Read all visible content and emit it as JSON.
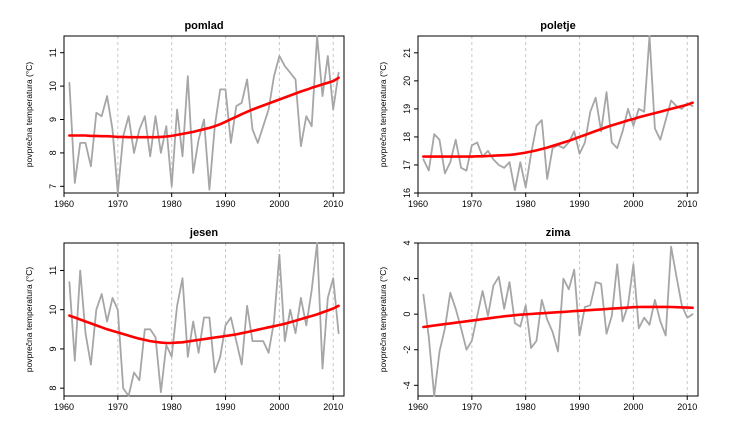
{
  "chart_data": [
    {
      "type": "line",
      "title": "pomlad",
      "xlabel": "",
      "ylabel": "povprečna temperatura (°C)",
      "xlim": [
        1960,
        2012
      ],
      "ylim": [
        6.8,
        11.5
      ],
      "xticks": [
        1960,
        1970,
        1980,
        1990,
        2000,
        2010
      ],
      "yticks": [
        7,
        8,
        9,
        10,
        11
      ],
      "vgrid_dashed": [
        1970,
        1980,
        1990,
        2000,
        2010
      ],
      "x": [
        1961,
        1962,
        1963,
        1964,
        1965,
        1966,
        1967,
        1968,
        1969,
        1970,
        1971,
        1972,
        1973,
        1974,
        1975,
        1976,
        1977,
        1978,
        1979,
        1980,
        1981,
        1982,
        1983,
        1984,
        1985,
        1986,
        1987,
        1988,
        1989,
        1990,
        1991,
        1992,
        1993,
        1994,
        1995,
        1996,
        1997,
        1998,
        1999,
        2000,
        2001,
        2002,
        2003,
        2004,
        2005,
        2006,
        2007,
        2008,
        2009,
        2010,
        2011
      ],
      "series": [
        {
          "color": "#a6a6a6",
          "values": [
            10.1,
            7.1,
            8.3,
            8.3,
            7.6,
            9.2,
            9.1,
            9.7,
            8.7,
            6.8,
            8.5,
            9.1,
            8.0,
            8.7,
            9.1,
            7.9,
            9.1,
            8.0,
            8.8,
            7.0,
            9.3,
            7.9,
            10.3,
            7.4,
            8.4,
            9.0,
            6.9,
            8.8,
            9.9,
            9.9,
            8.3,
            9.4,
            9.5,
            10.2,
            8.7,
            8.3,
            8.8,
            9.3,
            10.3,
            10.9,
            10.6,
            10.4,
            10.2,
            8.2,
            9.1,
            8.8,
            11.5,
            9.7,
            10.9,
            9.3,
            10.4
          ]
        },
        {
          "color": "#ff0000",
          "values": [
            8.52,
            8.52,
            8.52,
            8.52,
            8.51,
            8.51,
            8.5,
            8.5,
            8.49,
            8.48,
            8.48,
            8.47,
            8.47,
            8.47,
            8.47,
            8.47,
            8.47,
            8.48,
            8.49,
            8.51,
            8.54,
            8.57,
            8.6,
            8.63,
            8.67,
            8.71,
            8.75,
            8.8,
            8.86,
            8.93,
            9.01,
            9.08,
            9.16,
            9.23,
            9.3,
            9.36,
            9.42,
            9.48,
            9.54,
            9.6,
            9.66,
            9.72,
            9.78,
            9.84,
            9.89,
            9.95,
            10.0,
            10.05,
            10.1,
            10.15,
            10.25
          ]
        }
      ]
    },
    {
      "type": "line",
      "title": "poletje",
      "xlabel": "",
      "ylabel": "povprečna temperatura (°C)",
      "xlim": [
        1960,
        2012
      ],
      "ylim": [
        16.0,
        21.6
      ],
      "xticks": [
        1960,
        1970,
        1980,
        1990,
        2000,
        2010
      ],
      "yticks": [
        16,
        17,
        18,
        19,
        20,
        21
      ],
      "vgrid_dashed": [
        1970,
        1980,
        1990,
        2000,
        2010
      ],
      "x": [
        1961,
        1962,
        1963,
        1964,
        1965,
        1966,
        1967,
        1968,
        1969,
        1970,
        1971,
        1972,
        1973,
        1974,
        1975,
        1976,
        1977,
        1978,
        1979,
        1980,
        1981,
        1982,
        1983,
        1984,
        1985,
        1986,
        1987,
        1988,
        1989,
        1990,
        1991,
        1992,
        1993,
        1994,
        1995,
        1996,
        1997,
        1998,
        1999,
        2000,
        2001,
        2002,
        2003,
        2004,
        2005,
        2006,
        2007,
        2008,
        2009,
        2010,
        2011
      ],
      "series": [
        {
          "color": "#a6a6a6",
          "values": [
            17.2,
            16.8,
            18.1,
            17.9,
            16.7,
            17.1,
            17.9,
            16.9,
            16.8,
            17.7,
            17.8,
            17.3,
            17.5,
            17.2,
            17.0,
            16.9,
            17.1,
            16.1,
            17.1,
            16.2,
            17.4,
            18.4,
            18.6,
            16.5,
            17.6,
            17.7,
            17.6,
            17.8,
            18.2,
            17.4,
            17.8,
            18.9,
            19.4,
            18.2,
            19.6,
            17.8,
            17.6,
            18.2,
            19.0,
            18.4,
            19.0,
            18.9,
            21.6,
            18.3,
            17.9,
            18.6,
            19.3,
            19.1,
            19.0,
            19.2,
            19.1
          ]
        },
        {
          "color": "#ff0000",
          "values": [
            17.3,
            17.3,
            17.3,
            17.3,
            17.3,
            17.3,
            17.3,
            17.3,
            17.3,
            17.3,
            17.31,
            17.31,
            17.32,
            17.33,
            17.34,
            17.35,
            17.36,
            17.38,
            17.41,
            17.44,
            17.48,
            17.52,
            17.57,
            17.62,
            17.68,
            17.74,
            17.8,
            17.86,
            17.93,
            18.0,
            18.07,
            18.14,
            18.21,
            18.28,
            18.35,
            18.41,
            18.47,
            18.53,
            18.59,
            18.64,
            18.7,
            18.75,
            18.8,
            18.85,
            18.9,
            18.95,
            19.0,
            19.05,
            19.1,
            19.15,
            19.22
          ]
        }
      ]
    },
    {
      "type": "line",
      "title": "jesen",
      "xlabel": "",
      "ylabel": "povprečna temperatura (°C)",
      "xlim": [
        1960,
        2012
      ],
      "ylim": [
        7.8,
        11.7
      ],
      "xticks": [
        1960,
        1970,
        1980,
        1990,
        2000,
        2010
      ],
      "yticks": [
        8,
        9,
        10,
        11
      ],
      "vgrid_dashed": [
        1970,
        1980,
        1990,
        2000,
        2010
      ],
      "x": [
        1961,
        1962,
        1963,
        1964,
        1965,
        1966,
        1967,
        1968,
        1969,
        1970,
        1971,
        1972,
        1973,
        1974,
        1975,
        1976,
        1977,
        1978,
        1979,
        1980,
        1981,
        1982,
        1983,
        1984,
        1985,
        1986,
        1987,
        1988,
        1989,
        1990,
        1991,
        1992,
        1993,
        1994,
        1995,
        1996,
        1997,
        1998,
        1999,
        2000,
        2001,
        2002,
        2003,
        2004,
        2005,
        2006,
        2007,
        2008,
        2009,
        2010,
        2011
      ],
      "series": [
        {
          "color": "#a6a6a6",
          "values": [
            10.7,
            8.7,
            11.0,
            9.4,
            8.6,
            10.0,
            10.4,
            9.7,
            10.3,
            10.0,
            8.0,
            7.8,
            8.4,
            8.2,
            9.5,
            9.5,
            9.3,
            7.9,
            9.1,
            8.8,
            10.1,
            10.8,
            8.8,
            9.7,
            8.9,
            9.8,
            9.8,
            8.4,
            8.8,
            9.6,
            9.8,
            9.2,
            8.6,
            10.1,
            9.2,
            9.2,
            9.2,
            8.9,
            9.7,
            11.4,
            9.2,
            10.0,
            9.4,
            10.3,
            9.6,
            10.5,
            11.7,
            8.5,
            10.3,
            10.8,
            9.4
          ]
        },
        {
          "color": "#ff0000",
          "values": [
            9.85,
            9.8,
            9.75,
            9.7,
            9.65,
            9.6,
            9.55,
            9.5,
            9.46,
            9.42,
            9.38,
            9.34,
            9.3,
            9.26,
            9.23,
            9.2,
            9.18,
            9.16,
            9.15,
            9.15,
            9.16,
            9.17,
            9.19,
            9.21,
            9.23,
            9.25,
            9.27,
            9.29,
            9.31,
            9.33,
            9.35,
            9.37,
            9.4,
            9.43,
            9.46,
            9.49,
            9.52,
            9.55,
            9.58,
            9.61,
            9.64,
            9.68,
            9.72,
            9.76,
            9.8,
            9.84,
            9.88,
            9.93,
            9.98,
            10.03,
            10.1
          ]
        }
      ]
    },
    {
      "type": "line",
      "title": "zima",
      "xlabel": "",
      "ylabel": "povprečna temperatura (°C)",
      "xlim": [
        1960,
        2012
      ],
      "ylim": [
        -4.6,
        4.0
      ],
      "xticks": [
        1960,
        1970,
        1980,
        1990,
        2000,
        2010
      ],
      "yticks": [
        -4,
        -2,
        0,
        2,
        4
      ],
      "vgrid_dashed": [
        1970,
        1980,
        1990,
        2000,
        2010
      ],
      "x": [
        1961,
        1962,
        1963,
        1964,
        1965,
        1966,
        1967,
        1968,
        1969,
        1970,
        1971,
        1972,
        1973,
        1974,
        1975,
        1976,
        1977,
        1978,
        1979,
        1980,
        1981,
        1982,
        1983,
        1984,
        1985,
        1986,
        1987,
        1988,
        1989,
        1990,
        1991,
        1992,
        1993,
        1994,
        1995,
        1996,
        1997,
        1998,
        1999,
        2000,
        2001,
        2002,
        2003,
        2004,
        2005,
        2006,
        2007,
        2008,
        2009,
        2010,
        2011
      ],
      "series": [
        {
          "color": "#a6a6a6",
          "values": [
            1.1,
            -1.3,
            -4.6,
            -2.1,
            -0.8,
            1.2,
            0.3,
            -0.8,
            -2.0,
            -1.5,
            -0.1,
            1.3,
            -0.1,
            1.6,
            2.1,
            0.3,
            1.8,
            -0.5,
            -0.7,
            0.5,
            -1.9,
            -1.5,
            0.8,
            -0.3,
            -1.0,
            -2.1,
            2.0,
            1.4,
            2.5,
            -1.2,
            0.4,
            0.5,
            1.8,
            1.7,
            -1.1,
            -0.1,
            2.8,
            -0.4,
            0.5,
            2.8,
            -0.8,
            -0.2,
            -0.6,
            0.8,
            -0.4,
            -1.2,
            3.8,
            2.1,
            0.5,
            -0.2,
            0.0
          ]
        },
        {
          "color": "#ff0000",
          "values": [
            -0.72,
            -0.68,
            -0.64,
            -0.6,
            -0.56,
            -0.52,
            -0.48,
            -0.44,
            -0.4,
            -0.36,
            -0.32,
            -0.28,
            -0.24,
            -0.2,
            -0.16,
            -0.12,
            -0.09,
            -0.06,
            -0.03,
            -0.01,
            0.01,
            0.03,
            0.05,
            0.07,
            0.09,
            0.11,
            0.13,
            0.15,
            0.17,
            0.19,
            0.21,
            0.23,
            0.25,
            0.27,
            0.29,
            0.31,
            0.33,
            0.35,
            0.37,
            0.39,
            0.4,
            0.41,
            0.41,
            0.41,
            0.41,
            0.41,
            0.4,
            0.39,
            0.38,
            0.37,
            0.36
          ]
        }
      ]
    }
  ]
}
